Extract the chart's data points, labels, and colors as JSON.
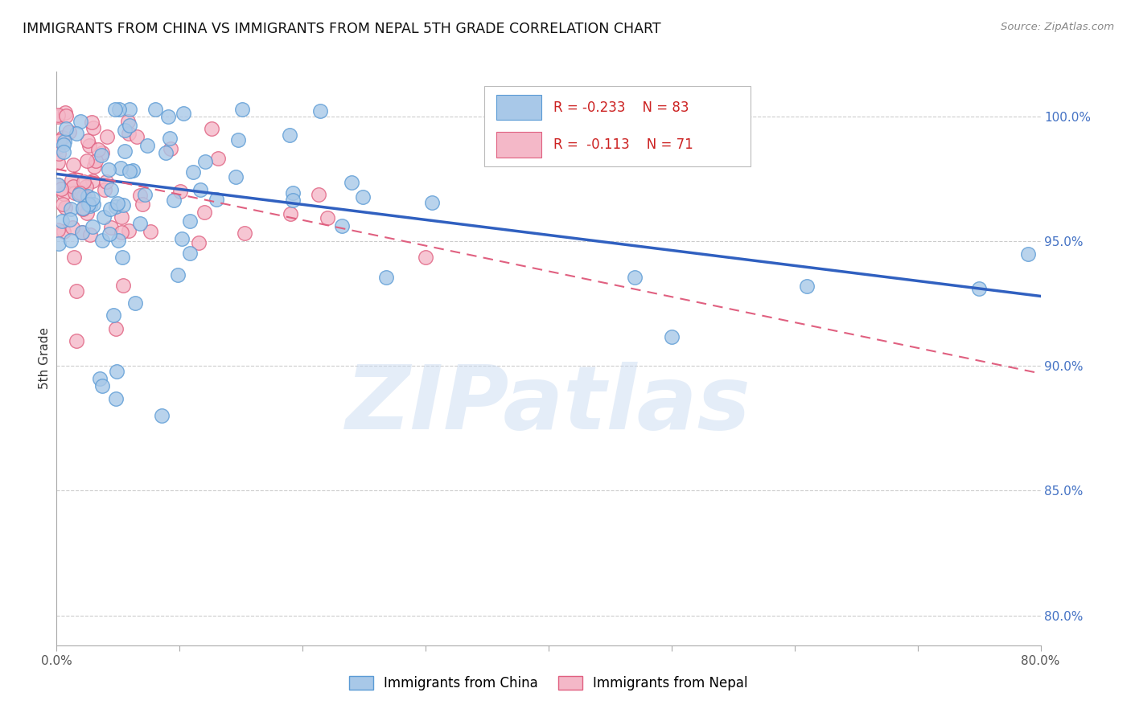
{
  "title": "IMMIGRANTS FROM CHINA VS IMMIGRANTS FROM NEPAL 5TH GRADE CORRELATION CHART",
  "source": "Source: ZipAtlas.com",
  "ylabel": "5th Grade",
  "ytick_labels": [
    "80.0%",
    "85.0%",
    "90.0%",
    "95.0%",
    "100.0%"
  ],
  "ytick_values": [
    0.8,
    0.85,
    0.9,
    0.95,
    1.0
  ],
  "xmin": 0.0,
  "xmax": 0.8,
  "ymin": 0.788,
  "ymax": 1.018,
  "china_color": "#a8c8e8",
  "china_edge_color": "#5b9bd5",
  "nepal_color": "#f4b8c8",
  "nepal_edge_color": "#e06080",
  "china_line_color": "#3060c0",
  "nepal_line_color": "#e06080",
  "legend_R_china": "R = -0.233",
  "legend_N_china": "N = 83",
  "legend_R_nepal": "R =  -0.113",
  "legend_N_nepal": "N = 71",
  "watermark": "ZIPatlas",
  "china_trend_x0": 0.0,
  "china_trend_y0": 0.977,
  "china_trend_x1": 0.8,
  "china_trend_y1": 0.928,
  "nepal_trend_x0": 0.0,
  "nepal_trend_y0": 0.979,
  "nepal_trend_x1": 0.8,
  "nepal_trend_y1": 0.897
}
